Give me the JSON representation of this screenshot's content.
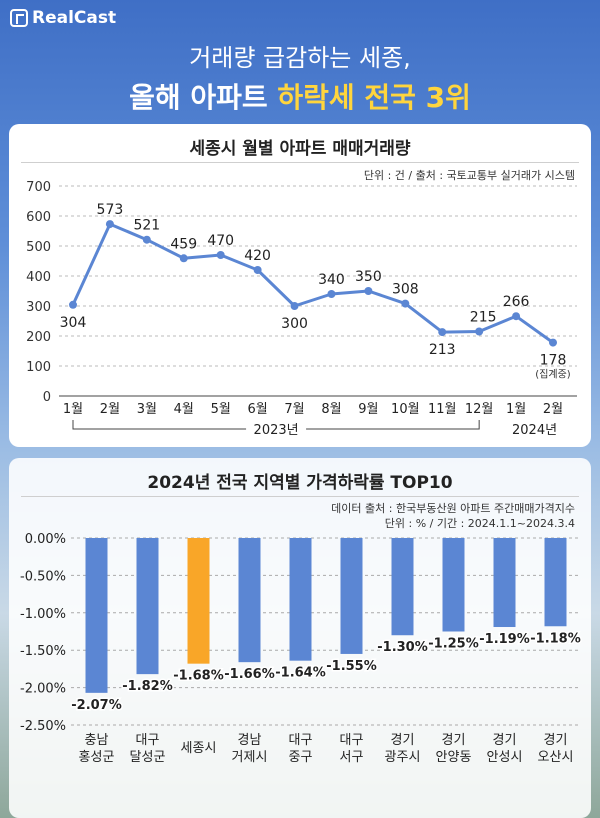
{
  "brand": {
    "name": "RealCast",
    "logo_icon": "realcast-logo-icon"
  },
  "headline": {
    "line1": "거래량 급감하는 세종,",
    "line2_prefix": "올해 아파트 ",
    "line2_highlight": "하락세 전국 3위",
    "highlight_color": "#ffd53d"
  },
  "chart_data": [
    {
      "type": "line",
      "title": "세종시 월별 아파트 매매거래량",
      "note": "단위 : 건 / 출처 : 국토교통부 실거래가 시스템",
      "categories": [
        "1월",
        "2월",
        "3월",
        "4월",
        "5월",
        "6월",
        "7월",
        "8월",
        "9월",
        "10월",
        "11월",
        "12월",
        "1월",
        "2월"
      ],
      "values": [
        304,
        573,
        521,
        459,
        470,
        420,
        300,
        340,
        350,
        308,
        213,
        215,
        266,
        178
      ],
      "value_labels": [
        "304",
        "573",
        "521",
        "459",
        "470",
        "420",
        "300",
        "340",
        "350",
        "308",
        "213",
        "215",
        "266",
        "178"
      ],
      "last_point_note": "(집계중)",
      "year_groups": [
        {
          "label": "2023년",
          "from": 0,
          "to": 11
        },
        {
          "label": "2024년",
          "from": 12,
          "to": 13
        }
      ],
      "ylim": [
        0,
        700
      ],
      "yticks": [
        0,
        100,
        200,
        300,
        400,
        500,
        600,
        700
      ],
      "ytick_labels": [
        "0",
        "100",
        "200",
        "300",
        "400",
        "500",
        "600",
        "700"
      ],
      "line_color": "#5b86d3",
      "grid": true
    },
    {
      "type": "bar",
      "title": "2024년 전국 지역별 가격하락률 TOP10",
      "note_lines": [
        "데이터 출처 : 한국부동산원 아파트 주간매매가격지수",
        "단위 : % / 기간 : 2024.1.1~2024.3.4"
      ],
      "categories": [
        [
          "충남",
          "홍성군"
        ],
        [
          "대구",
          "달성군"
        ],
        [
          "세종시"
        ],
        [
          "경남",
          "거제시"
        ],
        [
          "대구",
          "중구"
        ],
        [
          "대구",
          "서구"
        ],
        [
          "경기",
          "광주시"
        ],
        [
          "경기",
          "안양동"
        ],
        [
          "경기",
          "안성시"
        ],
        [
          "경기",
          "오산시"
        ]
      ],
      "values": [
        -2.07,
        -1.82,
        -1.68,
        -1.66,
        -1.64,
        -1.55,
        -1.3,
        -1.25,
        -1.19,
        -1.18
      ],
      "value_labels": [
        "-2.07%",
        "-1.82%",
        "-1.68%",
        "-1.66%",
        "-1.64%",
        "-1.55%",
        "-1.30%",
        "-1.25%",
        "-1.19%",
        "-1.18%"
      ],
      "highlight_index": 2,
      "bar_color": "#5b86d3",
      "highlight_color": "#f9a628",
      "ylim": [
        -2.5,
        0
      ],
      "yticks": [
        0,
        -0.5,
        -1.0,
        -1.5,
        -2.0,
        -2.5
      ],
      "ytick_labels": [
        "0.00%",
        "-0.50%",
        "-1.00%",
        "-1.50%",
        "-2.00%",
        "-2.50%"
      ],
      "grid": true
    }
  ]
}
